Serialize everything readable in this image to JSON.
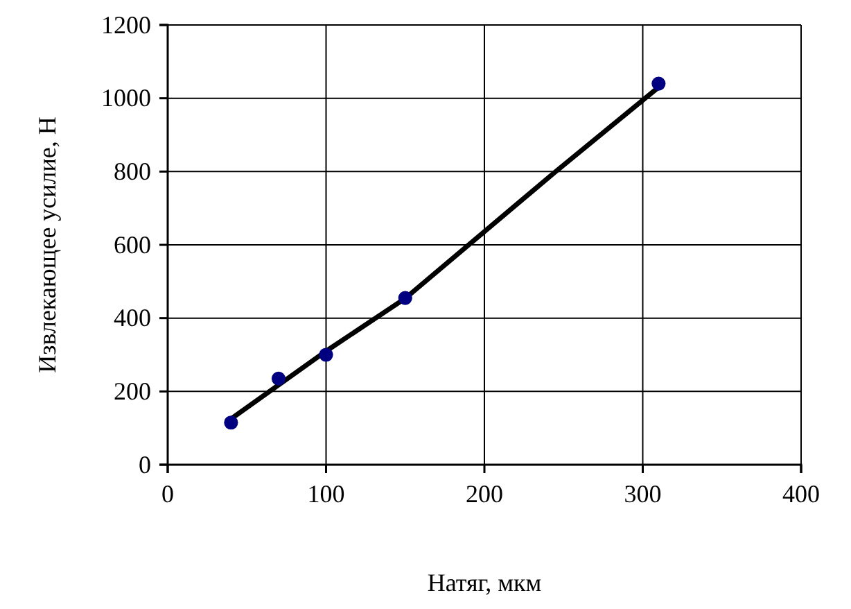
{
  "chart_data": {
    "type": "scatter",
    "xlabel": "Натяг, мкм",
    "ylabel": "Извлекающее усилие, Н",
    "xlim": [
      0,
      400
    ],
    "xticks": [
      0,
      100,
      200,
      300,
      400
    ],
    "ylim": [
      0,
      1200
    ],
    "yticks": [
      0,
      200,
      400,
      600,
      800,
      1000,
      1200
    ],
    "grid": true,
    "marker": "circle",
    "series": [
      {
        "color": "#000080",
        "x": [
          40,
          70,
          100,
          150,
          310
        ],
        "values": [
          115,
          235,
          300,
          455,
          1040
        ]
      },
      {
        "type": "line",
        "color": "#000000",
        "x": [
          40,
          100,
          150,
          245,
          310
        ],
        "values": [
          125,
          310,
          454,
          800,
          1030
        ],
        "line_style": "solid",
        "marker": "none"
      }
    ]
  }
}
